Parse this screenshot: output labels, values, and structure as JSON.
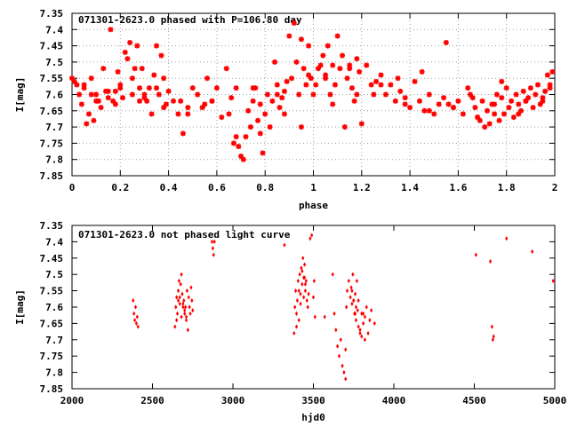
{
  "colors": {
    "points": "#ff0000",
    "frame": "#000000",
    "grid": "#a0a0a0",
    "background": "#ffffff"
  },
  "chart_data": [
    {
      "type": "scatter",
      "title": "071301-2623.0 phased with P=106.80 day",
      "xlabel": "phase",
      "ylabel": "I[mag]",
      "xlim": [
        0,
        2
      ],
      "ylim": [
        7.85,
        7.35
      ],
      "y_inverted": true,
      "grid": true,
      "marker": "star",
      "x_ticks": [
        "0",
        "0.2",
        "0.4",
        "0.6",
        "0.8",
        "1",
        "1.2",
        "1.4",
        "1.6",
        "1.8",
        "2"
      ],
      "y_ticks": [
        "7.35",
        "7.4",
        "7.45",
        "7.5",
        "7.55",
        "7.6",
        "7.65",
        "7.7",
        "7.75",
        "7.8",
        "7.85"
      ],
      "x": [
        0.0,
        0.01,
        0.02,
        0.03,
        0.04,
        0.05,
        0.06,
        0.07,
        0.08,
        0.09,
        0.1,
        0.11,
        0.12,
        0.13,
        0.14,
        0.15,
        0.16,
        0.17,
        0.18,
        0.19,
        0.2,
        0.21,
        0.22,
        0.23,
        0.24,
        0.25,
        0.26,
        0.27,
        0.28,
        0.29,
        0.3,
        0.31,
        0.32,
        0.33,
        0.34,
        0.35,
        0.36,
        0.37,
        0.38,
        0.39,
        0.4,
        0.42,
        0.44,
        0.46,
        0.48,
        0.5,
        0.52,
        0.54,
        0.56,
        0.58,
        0.6,
        0.62,
        0.64,
        0.66,
        0.67,
        0.68,
        0.69,
        0.7,
        0.71,
        0.72,
        0.73,
        0.74,
        0.75,
        0.76,
        0.77,
        0.78,
        0.79,
        0.8,
        0.81,
        0.82,
        0.83,
        0.84,
        0.85,
        0.86,
        0.87,
        0.88,
        0.89,
        0.9,
        0.91,
        0.92,
        0.93,
        0.94,
        0.95,
        0.96,
        0.97,
        0.98,
        0.99,
        1.0,
        1.01,
        1.02,
        1.03,
        1.04,
        1.05,
        1.06,
        1.07,
        1.08,
        1.09,
        1.1,
        1.11,
        1.12,
        1.13,
        1.14,
        1.15,
        1.16,
        1.17,
        1.18,
        1.19,
        1.2,
        1.22,
        1.24,
        1.26,
        1.28,
        1.3,
        1.32,
        1.34,
        1.36,
        1.38,
        1.4,
        1.42,
        1.44,
        1.46,
        1.48,
        1.5,
        1.52,
        1.54,
        1.55,
        1.56,
        1.58,
        1.6,
        1.62,
        1.64,
        1.66,
        1.67,
        1.68,
        1.69,
        1.7,
        1.71,
        1.72,
        1.73,
        1.74,
        1.75,
        1.76,
        1.77,
        1.78,
        1.79,
        1.8,
        1.81,
        1.82,
        1.83,
        1.84,
        1.85,
        1.86,
        1.87,
        1.88,
        1.89,
        1.9,
        1.91,
        1.92,
        1.93,
        1.94,
        1.95,
        1.96,
        1.97,
        1.98,
        1.99,
        0.05,
        0.1,
        0.15,
        0.2,
        0.25,
        0.3,
        0.35,
        0.45,
        0.55,
        0.65,
        0.75,
        0.85,
        0.95,
        1.05,
        1.15,
        1.25,
        1.35,
        1.45,
        1.65,
        1.75,
        1.85,
        1.95,
        0.08,
        0.18,
        0.28,
        0.38,
        0.48,
        0.58,
        0.68,
        0.78,
        0.88,
        0.98,
        1.08,
        1.18,
        1.28,
        1.38,
        1.48,
        1.58,
        1.68,
        1.78,
        1.88,
        1.98
      ],
      "y": [
        7.55,
        7.56,
        7.57,
        7.6,
        7.63,
        7.57,
        7.69,
        7.66,
        7.55,
        7.68,
        7.6,
        7.62,
        7.64,
        7.52,
        7.59,
        7.61,
        7.4,
        7.62,
        7.63,
        7.53,
        7.58,
        7.61,
        7.47,
        7.49,
        7.44,
        7.55,
        7.52,
        7.45,
        7.58,
        7.52,
        7.6,
        7.62,
        7.58,
        7.66,
        7.54,
        7.45,
        7.6,
        7.48,
        7.55,
        7.63,
        7.59,
        7.62,
        7.66,
        7.72,
        7.64,
        7.58,
        7.6,
        7.64,
        7.55,
        7.62,
        7.58,
        7.67,
        7.52,
        7.61,
        7.75,
        7.73,
        7.76,
        7.79,
        7.8,
        7.73,
        7.65,
        7.7,
        7.62,
        7.58,
        7.68,
        7.72,
        7.78,
        7.66,
        7.6,
        7.7,
        7.62,
        7.5,
        7.57,
        7.64,
        7.61,
        7.59,
        7.56,
        7.42,
        7.55,
        7.38,
        7.5,
        7.6,
        7.43,
        7.52,
        7.57,
        7.45,
        7.55,
        7.6,
        7.57,
        7.52,
        7.51,
        7.48,
        7.54,
        7.45,
        7.6,
        7.51,
        7.57,
        7.42,
        7.52,
        7.48,
        7.7,
        7.55,
        7.51,
        7.58,
        7.62,
        7.49,
        7.53,
        7.69,
        7.51,
        7.57,
        7.56,
        7.54,
        7.6,
        7.57,
        7.62,
        7.59,
        7.61,
        7.64,
        7.56,
        7.62,
        7.65,
        7.6,
        7.66,
        7.63,
        7.61,
        7.44,
        7.63,
        7.64,
        7.62,
        7.66,
        7.58,
        7.61,
        7.64,
        7.67,
        7.68,
        7.62,
        7.7,
        7.65,
        7.69,
        7.63,
        7.66,
        7.6,
        7.68,
        7.56,
        7.66,
        7.58,
        7.64,
        7.62,
        7.67,
        7.6,
        7.63,
        7.65,
        7.59,
        7.62,
        7.61,
        7.58,
        7.64,
        7.6,
        7.57,
        7.63,
        7.61,
        7.59,
        7.54,
        7.57,
        7.53,
        7.58,
        7.62,
        7.59,
        7.57,
        7.6,
        7.61,
        7.58,
        7.62,
        7.63,
        7.66,
        7.58,
        7.6,
        7.7,
        7.55,
        7.52,
        7.6,
        7.55,
        7.53,
        7.6,
        7.63,
        7.66,
        7.62,
        7.6,
        7.59,
        7.62,
        7.64,
        7.66,
        7.62,
        7.58,
        7.63,
        7.66,
        7.54,
        7.63,
        7.6,
        7.57,
        7.63,
        7.65,
        7.64,
        7.67,
        7.61,
        7.62,
        7.58
      ]
    },
    {
      "type": "scatter",
      "title": "071301-2623.0 not phased light curve",
      "xlabel": "hjd0",
      "ylabel": "I[mag]",
      "xlim": [
        2000,
        5000
      ],
      "ylim": [
        7.85,
        7.35
      ],
      "y_inverted": true,
      "grid": false,
      "marker": "diamond",
      "x_ticks": [
        "2000",
        "2500",
        "3000",
        "3500",
        "4000",
        "4500",
        "5000"
      ],
      "y_ticks": [
        "7.35",
        "7.4",
        "7.45",
        "7.5",
        "7.55",
        "7.6",
        "7.65",
        "7.7",
        "7.75",
        "7.8",
        "7.85"
      ],
      "x": [
        2380,
        2385,
        2390,
        2395,
        2400,
        2405,
        2410,
        2640,
        2645,
        2650,
        2655,
        2660,
        2665,
        2670,
        2675,
        2680,
        2685,
        2690,
        2695,
        2700,
        2705,
        2710,
        2715,
        2720,
        2725,
        2730,
        2735,
        2740,
        2745,
        2750,
        2870,
        2875,
        2880,
        2885,
        3320,
        3380,
        3385,
        3390,
        3395,
        3400,
        3405,
        3410,
        3415,
        3420,
        3425,
        3430,
        3435,
        3440,
        3445,
        3450,
        3455,
        3460,
        3465,
        3470,
        3480,
        3490,
        3500,
        3505,
        3510,
        3570,
        3620,
        3630,
        3640,
        3650,
        3660,
        3670,
        3680,
        3690,
        3700,
        3705,
        3710,
        3720,
        3730,
        3740,
        3745,
        3750,
        3755,
        3760,
        3765,
        3770,
        3780,
        3790,
        3800,
        3810,
        3820,
        3830,
        3840,
        3850,
        3860,
        3880,
        4510,
        4600,
        4610,
        4615,
        4620,
        4700,
        4860,
        4990,
        2660,
        2680,
        2700,
        3410,
        3430,
        3450,
        3700,
        3740,
        3760,
        3780,
        3800,
        3820,
        2650,
        2690,
        3395,
        3445,
        3735,
        3765,
        3790,
        3810,
        2670,
        2710,
        3420,
        3440,
        3750,
        3775
      ],
      "y": [
        7.58,
        7.62,
        7.64,
        7.6,
        7.65,
        7.63,
        7.66,
        7.66,
        7.6,
        7.57,
        7.62,
        7.55,
        7.52,
        7.59,
        7.53,
        7.5,
        7.56,
        7.6,
        7.58,
        7.62,
        7.6,
        7.64,
        7.55,
        7.67,
        7.57,
        7.6,
        7.62,
        7.54,
        7.58,
        7.61,
        7.4,
        7.42,
        7.44,
        7.4,
        7.41,
        7.68,
        7.6,
        7.55,
        7.62,
        7.58,
        7.52,
        7.64,
        7.5,
        7.56,
        7.48,
        7.53,
        7.45,
        7.51,
        7.47,
        7.55,
        7.52,
        7.58,
        7.6,
        7.56,
        7.39,
        7.38,
        7.57,
        7.52,
        7.63,
        7.63,
        7.5,
        7.62,
        7.67,
        7.72,
        7.75,
        7.7,
        7.78,
        7.8,
        7.82,
        7.6,
        7.55,
        7.52,
        7.57,
        7.55,
        7.5,
        7.58,
        7.62,
        7.56,
        7.64,
        7.52,
        7.58,
        7.67,
        7.62,
        7.65,
        7.7,
        7.6,
        7.68,
        7.64,
        7.61,
        7.65,
        7.44,
        7.46,
        7.66,
        7.7,
        7.69,
        7.39,
        7.43,
        7.52,
        7.58,
        7.63,
        7.61,
        7.55,
        7.49,
        7.53,
        7.73,
        7.59,
        7.62,
        7.66,
        7.69,
        7.63,
        7.64,
        7.59,
        7.66,
        7.51,
        7.54,
        7.6,
        7.68,
        7.62,
        7.57,
        7.63,
        7.59,
        7.57,
        7.58,
        7.61
      ]
    }
  ]
}
